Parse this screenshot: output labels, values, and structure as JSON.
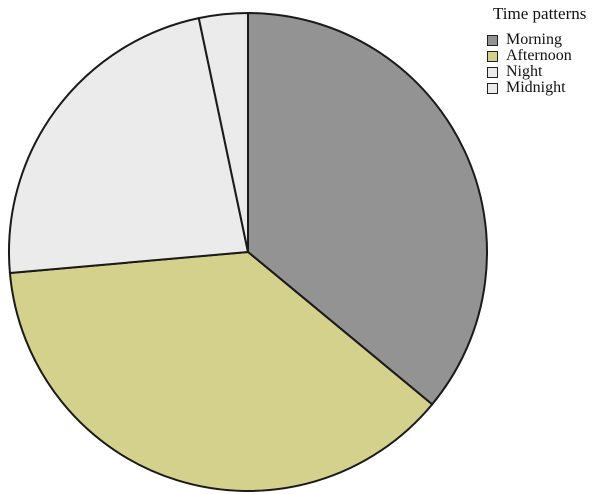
{
  "chart_data": {
    "type": "pie",
    "title": "",
    "legend_title": "Time patterns",
    "legend_position": "top-right",
    "start_angle_deg": 0,
    "direction": "clockwise",
    "series": [
      {
        "name": "Morning",
        "value": 36.0,
        "color": "#939393"
      },
      {
        "name": "Afternoon",
        "value": 37.6,
        "color": "#d4d18c"
      },
      {
        "name": "Night",
        "value": 23.1,
        "color": "#ebebeb"
      },
      {
        "name": "Midnight",
        "value": 3.3,
        "color": "#ebebeb"
      }
    ]
  }
}
